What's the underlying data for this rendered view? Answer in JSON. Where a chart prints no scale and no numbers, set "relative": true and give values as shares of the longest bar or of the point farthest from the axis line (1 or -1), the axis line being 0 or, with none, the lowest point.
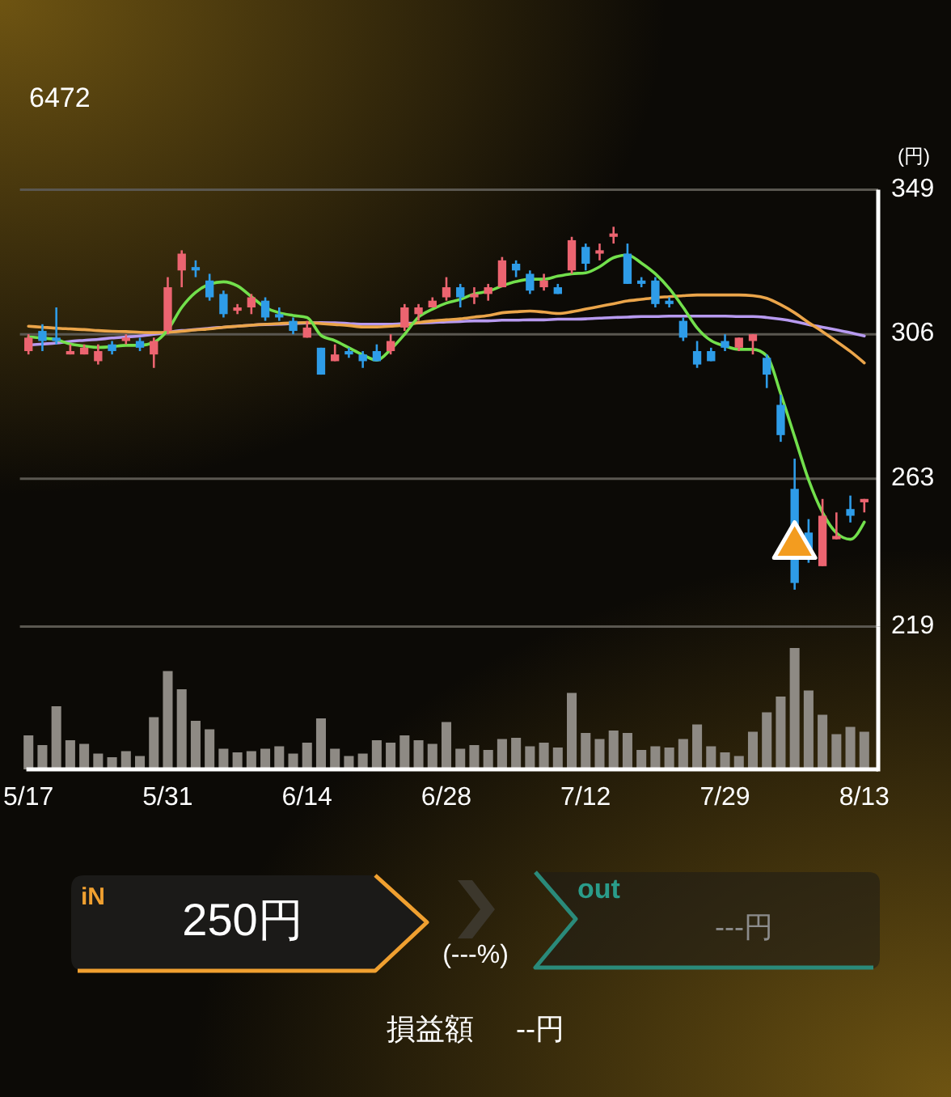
{
  "chart_data": [
    {
      "type": "candlestick",
      "title": "6472",
      "ylabel": "(円)",
      "categories": [
        "5/17",
        null,
        null,
        null,
        null,
        null,
        null,
        null,
        null,
        null,
        "5/31",
        null,
        null,
        null,
        null,
        null,
        null,
        null,
        null,
        null,
        "6/14",
        null,
        null,
        null,
        null,
        null,
        null,
        null,
        null,
        null,
        "6/28",
        null,
        null,
        null,
        null,
        null,
        null,
        null,
        null,
        null,
        "7/12",
        null,
        null,
        null,
        null,
        null,
        null,
        null,
        null,
        null,
        "7/29",
        null,
        null,
        null,
        null,
        null,
        null,
        null,
        null,
        null,
        "8/13"
      ],
      "ohlc": [
        [
          301,
          306,
          300,
          305
        ],
        [
          307,
          309,
          301,
          304
        ],
        [
          305,
          314,
          303,
          304
        ],
        [
          300,
          303,
          300,
          301
        ],
        [
          300,
          303,
          300,
          302
        ],
        [
          298,
          303,
          297,
          301
        ],
        [
          303,
          304,
          300,
          301
        ],
        [
          304,
          306,
          303,
          305
        ],
        [
          304,
          305,
          301,
          302
        ],
        [
          300,
          305,
          296,
          304
        ],
        [
          307,
          323,
          306,
          320
        ],
        [
          325,
          331,
          320,
          330
        ],
        [
          326,
          328,
          323,
          325
        ],
        [
          322,
          324,
          316,
          317
        ],
        [
          318,
          319,
          311,
          312
        ],
        [
          313,
          315,
          312,
          314
        ],
        [
          314,
          318,
          312,
          317
        ],
        [
          316,
          317,
          310,
          311
        ],
        [
          312,
          314,
          310,
          311
        ],
        [
          310,
          311,
          306,
          307
        ],
        [
          305,
          310,
          305,
          308
        ],
        [
          302,
          302,
          294,
          294
        ],
        [
          298,
          303,
          298,
          300
        ],
        [
          301,
          302,
          299,
          300
        ],
        [
          300,
          301,
          296,
          298
        ],
        [
          301,
          303,
          298,
          298
        ],
        [
          301,
          306,
          300,
          304
        ],
        [
          308,
          315,
          307,
          314
        ],
        [
          312,
          315,
          310,
          314
        ],
        [
          314,
          317,
          314,
          316
        ],
        [
          317,
          323,
          316,
          320
        ],
        [
          320,
          321,
          314,
          317
        ],
        [
          317,
          320,
          315,
          318
        ],
        [
          318,
          321,
          316,
          320
        ],
        [
          320,
          329,
          320,
          328
        ],
        [
          327,
          328,
          323,
          325
        ],
        [
          324,
          325,
          318,
          319
        ],
        [
          320,
          324,
          319,
          322
        ],
        [
          320,
          321,
          318,
          318
        ],
        [
          325,
          335,
          324,
          334
        ],
        [
          332,
          333,
          325,
          327
        ],
        [
          330,
          333,
          328,
          331
        ],
        [
          335,
          338,
          333,
          336
        ],
        [
          330,
          333,
          321,
          321
        ],
        [
          322,
          323,
          320,
          321
        ],
        [
          322,
          323,
          314,
          315
        ],
        [
          316,
          317,
          314,
          315
        ],
        [
          310,
          311,
          304,
          305
        ],
        [
          301,
          304,
          296,
          297
        ],
        [
          301,
          302,
          298,
          298
        ],
        [
          304,
          306,
          301,
          302
        ],
        [
          302,
          305,
          301,
          305
        ],
        [
          304,
          306,
          300,
          306
        ],
        [
          299,
          300,
          290,
          294
        ],
        [
          285,
          288,
          274,
          276
        ],
        [
          260,
          269,
          230,
          232
        ],
        [
          247,
          251,
          238,
          239
        ],
        [
          237,
          257,
          237,
          252
        ],
        [
          245,
          253,
          245,
          246
        ],
        [
          254,
          258,
          250,
          252
        ],
        [
          256,
          257,
          253,
          257
        ]
      ],
      "colors": [
        "#ec6470",
        "#2e9ce8",
        "#2e9ce8",
        "#ec6470",
        "#ec6470",
        "#ec6470",
        "#2e9ce8",
        "#ec6470",
        "#2e9ce8",
        "#ec6470",
        "#ec6470",
        "#ec6470",
        "#2e9ce8",
        "#2e9ce8",
        "#2e9ce8",
        "#ec6470",
        "#ec6470",
        "#2e9ce8",
        "#2e9ce8",
        "#2e9ce8",
        "#ec6470",
        "#2e9ce8",
        "#ec6470",
        "#2e9ce8",
        "#2e9ce8",
        "#2e9ce8",
        "#ec6470",
        "#ec6470",
        "#ec6470",
        "#ec6470",
        "#ec6470",
        "#2e9ce8",
        "#ec6470",
        "#ec6470",
        "#ec6470",
        "#2e9ce8",
        "#2e9ce8",
        "#ec6470",
        "#2e9ce8",
        "#ec6470",
        "#2e9ce8",
        "#ec6470",
        "#ec6470",
        "#2e9ce8",
        "#2e9ce8",
        "#2e9ce8",
        "#2e9ce8",
        "#2e9ce8",
        "#2e9ce8",
        "#2e9ce8",
        "#2e9ce8",
        "#ec6470",
        "#ec6470",
        "#2e9ce8",
        "#2e9ce8",
        "#2e9ce8",
        "#2e9ce8",
        "#ec6470",
        "#ec6470",
        "#2e9ce8",
        "#ec6470"
      ],
      "series": [
        {
          "type": "line",
          "color": "#b79af0",
          "values": [
            302.8,
            303.1,
            303.4,
            303.9,
            304.2,
            304.5,
            304.9,
            305.2,
            305.5,
            306,
            306.6,
            307.1,
            307.4,
            307.8,
            308.1,
            308.4,
            308.7,
            308.9,
            309,
            309.2,
            309.4,
            309.5,
            309.4,
            309.2,
            309,
            309,
            309,
            309.2,
            309.4,
            309.5,
            309.7,
            309.8,
            310,
            310,
            310.2,
            310.2,
            310.3,
            310.3,
            310.5,
            310.5,
            310.6,
            310.8,
            311,
            311.1,
            311.3,
            311.3,
            311.4,
            311.4,
            311.4,
            311.4,
            311.4,
            311.3,
            311.3,
            311,
            310.5,
            309.8,
            308.9,
            308.1,
            307.3,
            306.5,
            305.5
          ]
        },
        {
          "type": "line",
          "color": "#eba54a",
          "values": [
            308.4,
            308.1,
            307.8,
            307.6,
            307.4,
            307.1,
            306.9,
            306.8,
            306.6,
            306.5,
            306.6,
            306.9,
            307.3,
            307.6,
            308.1,
            308.4,
            308.7,
            309,
            309.2,
            309.4,
            309.5,
            309.2,
            308.9,
            308.6,
            308.2,
            308.2,
            308.4,
            308.7,
            309.5,
            310,
            310.3,
            310.6,
            311.1,
            311.6,
            312.4,
            312.7,
            312.9,
            312.6,
            312.2,
            312.7,
            313.5,
            314.3,
            315.1,
            315.9,
            316.4,
            316.9,
            317.2,
            317.5,
            317.7,
            317.7,
            317.7,
            317.7,
            317.5,
            316.7,
            314.8,
            312.4,
            309.5,
            306.8,
            303.9,
            300.9,
            297.5
          ]
        },
        {
          "type": "line",
          "color": "#72e04c",
          "values": [
            305.2,
            304.9,
            304.4,
            303.1,
            302.5,
            302.1,
            302.3,
            302.7,
            302.7,
            303.6,
            307.3,
            314,
            318.5,
            320.9,
            321.6,
            320.4,
            317.2,
            314,
            312.4,
            311.6,
            311,
            305.7,
            304.1,
            302,
            299.9,
            298.3,
            301.5,
            306,
            311.1,
            313.5,
            315.3,
            316.4,
            318,
            318.8,
            320.4,
            321.7,
            322.4,
            322.4,
            323.3,
            324,
            324.3,
            326.1,
            328.8,
            329.6,
            327.2,
            324,
            319.6,
            314,
            307.9,
            304.1,
            302.5,
            301.5,
            301.5,
            299.6,
            288.3,
            275.5,
            262.7,
            253,
            246.9,
            245,
            250.1
          ]
        },
        {
          "type": "scatter",
          "marker": "triangle",
          "color": "#f39c1f",
          "values": [
            null,
            null,
            null,
            null,
            null,
            null,
            null,
            null,
            null,
            null,
            null,
            null,
            null,
            null,
            null,
            null,
            null,
            null,
            null,
            null,
            null,
            null,
            null,
            null,
            null,
            null,
            null,
            null,
            null,
            null,
            null,
            null,
            null,
            null,
            null,
            null,
            null,
            null,
            null,
            null,
            null,
            null,
            null,
            null,
            null,
            null,
            null,
            null,
            null,
            null,
            null,
            null,
            null,
            null,
            null,
            243,
            null,
            null,
            null,
            null,
            null
          ]
        }
      ],
      "ylim": [
        219,
        349
      ],
      "yticks": [
        219,
        263,
        306,
        349
      ],
      "grid": "y"
    },
    {
      "type": "bar",
      "relative": true,
      "color": "#8e8a84",
      "categories": [
        null,
        null,
        null,
        null,
        null,
        null,
        null,
        null,
        null,
        null,
        null,
        null,
        null,
        null,
        null,
        null,
        null,
        null,
        null,
        null,
        null,
        null,
        null,
        null,
        null,
        null,
        null,
        null,
        null,
        null,
        null,
        null,
        null,
        null,
        null,
        null,
        null,
        null,
        null,
        null,
        null,
        null,
        null,
        null,
        null,
        null,
        null,
        null,
        null,
        null,
        null,
        null,
        null,
        null,
        null,
        null,
        null,
        null,
        null,
        null,
        null
      ],
      "values": [
        0.28,
        0.2,
        0.52,
        0.24,
        0.21,
        0.13,
        0.1,
        0.15,
        0.11,
        0.43,
        0.81,
        0.66,
        0.4,
        0.33,
        0.17,
        0.14,
        0.15,
        0.17,
        0.19,
        0.13,
        0.22,
        0.42,
        0.17,
        0.11,
        0.13,
        0.24,
        0.22,
        0.28,
        0.24,
        0.21,
        0.39,
        0.17,
        0.2,
        0.16,
        0.25,
        0.26,
        0.19,
        0.22,
        0.18,
        0.63,
        0.3,
        0.25,
        0.32,
        0.3,
        0.16,
        0.19,
        0.18,
        0.25,
        0.37,
        0.19,
        0.14,
        0.11,
        0.31,
        0.47,
        0.6,
        1,
        0.65,
        0.45,
        0.29,
        0.35,
        0.31
      ]
    },
    {
      "type": "other",
      "annotations": [
        "iN",
        "250円",
        "(---%)",
        "out",
        "---円",
        "損益額",
        "--円"
      ]
    }
  ]
}
